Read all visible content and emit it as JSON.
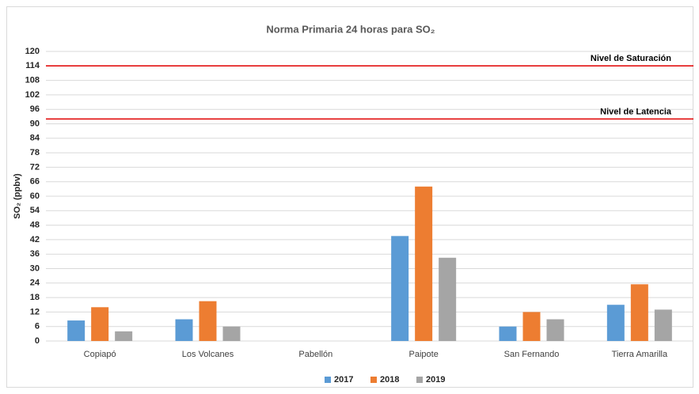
{
  "chart_data": {
    "type": "bar",
    "title": "Norma Primaria 24 horas para SO₂",
    "y_label": "SO₂ (ppbv)",
    "categories": [
      "Copiapó",
      "Los Volcanes",
      "Pabellón",
      "Paipote",
      "San Fernando",
      "Tierra Amarilla"
    ],
    "series": [
      {
        "name": "2017",
        "color": "#5b9bd5",
        "values": [
          8.5,
          9,
          null,
          43.5,
          6,
          15
        ]
      },
      {
        "name": "2018",
        "color": "#ed7d31",
        "values": [
          14,
          16.5,
          null,
          64,
          12,
          23.5
        ]
      },
      {
        "name": "2019",
        "color": "#a5a5a5",
        "values": [
          4,
          6,
          null,
          34.5,
          9,
          13
        ]
      }
    ],
    "reference_lines": [
      {
        "label": "Nivel de Saturación",
        "value": 114,
        "color": "#e00000"
      },
      {
        "label": "Nivel de Latencia",
        "value": 92,
        "color": "#e00000"
      }
    ],
    "ylim": [
      0,
      120
    ],
    "yticks": [
      0,
      6,
      12,
      18,
      24,
      30,
      36,
      42,
      48,
      54,
      60,
      66,
      72,
      78,
      84,
      90,
      96,
      102,
      108,
      114,
      120
    ],
    "grid": true,
    "legend": "bottom"
  }
}
